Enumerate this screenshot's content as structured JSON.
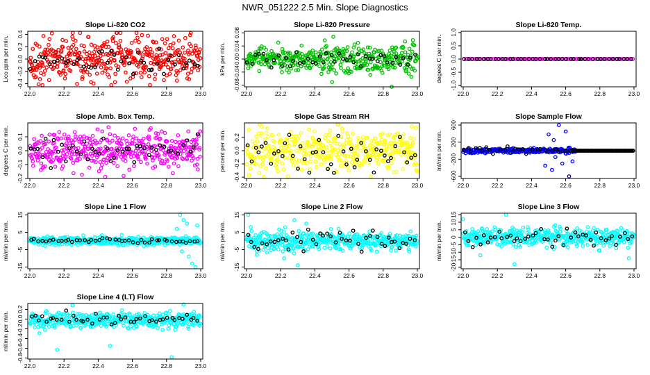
{
  "figure_title": "NWR_051222  2.5 Min. Slope Diagnostics",
  "colors": {
    "red": "#ff0000",
    "green": "#00c000",
    "magenta": "#ff00ff",
    "yellow": "#ffff00",
    "blue": "#0000ff",
    "cyan": "#00ffff",
    "black": "#000000"
  },
  "chart_data": [
    {
      "type": "scatter",
      "title": "Slope Li-820 CO2",
      "ylabel": "Lico ppm per min.",
      "color": "#ff0000",
      "xlim": [
        22.0,
        23.0
      ],
      "ylim": [
        -0.45,
        0.45
      ],
      "xticks": [
        22.0,
        22.2,
        22.4,
        22.6,
        22.8,
        23.0
      ],
      "xtick_labels": [
        "22.0",
        "22.2",
        "22.4",
        "22.6",
        "22.8",
        "23.0"
      ],
      "yticks": [
        -0.4,
        -0.2,
        0.0,
        0.2,
        0.4
      ],
      "ytick_labels": [
        "-0.4",
        "-0.2",
        "0.0",
        "0.2",
        "0.4"
      ],
      "series": [
        {
          "name": "all",
          "x_range": [
            22.0,
            23.0
          ],
          "center": 0.0,
          "spread": 0.18,
          "count": 420,
          "outliers": []
        },
        {
          "name": "subset",
          "color": "#000000",
          "count": 45,
          "spread": 0.12,
          "offset": -0.02
        }
      ]
    },
    {
      "type": "scatter",
      "title": "Slope Li-820 Pressure",
      "ylabel": "kPa per min.",
      "color": "#00c000",
      "xlim": [
        22.0,
        23.0
      ],
      "ylim": [
        -0.085,
        0.085
      ],
      "xticks": [
        22.0,
        22.2,
        22.4,
        22.6,
        22.8,
        23.0
      ],
      "xtick_labels": [
        "22.0",
        "22.2",
        "22.4",
        "22.6",
        "22.8",
        "23.0"
      ],
      "yticks": [
        -0.08,
        -0.04,
        0.0,
        0.04,
        0.08
      ],
      "ytick_labels": [
        "-0.08",
        "-0.04",
        "0.00",
        "0.04",
        "0.08"
      ],
      "series": [
        {
          "name": "all",
          "x_range": [
            22.0,
            23.0
          ],
          "center": 0.0,
          "spread": 0.015,
          "count": 420,
          "outliers": [
            [
              22.85,
              -0.085
            ]
          ],
          "growth": 1.8
        },
        {
          "name": "subset",
          "color": "#000000",
          "count": 45,
          "spread": 0.012,
          "offset": -0.002
        }
      ]
    },
    {
      "type": "scatter",
      "title": "Slope Li-820 Temp.",
      "ylabel": "degees C per min.",
      "color": "#ff00ff",
      "xlim": [
        22.0,
        23.0
      ],
      "ylim": [
        -1.05,
        1.05
      ],
      "xticks": [
        22.0,
        22.2,
        22.4,
        22.6,
        22.8,
        23.0
      ],
      "xtick_labels": [
        "22.0",
        "22.2",
        "22.4",
        "22.6",
        "22.8",
        "23.0"
      ],
      "yticks": [
        -1.0,
        -0.5,
        0.0,
        0.5,
        1.0
      ],
      "ytick_labels": [
        "-1.0",
        "-0.5",
        "0.0",
        "0.5",
        "1.0"
      ],
      "series": [
        {
          "name": "all",
          "x_range": [
            22.0,
            23.0
          ],
          "center": 0.0,
          "spread": 0.0,
          "count": 100,
          "outliers": []
        },
        {
          "name": "subset",
          "color": "#000000",
          "count": 45,
          "spread": 0.0,
          "offset": 0.0
        }
      ]
    },
    {
      "type": "scatter",
      "title": "Slope Amb. Box Temp.",
      "ylabel": "degrees C per min.",
      "color": "#ff00ff",
      "xlim": [
        22.0,
        23.0
      ],
      "ylim": [
        -0.2,
        0.2
      ],
      "xticks": [
        22.0,
        22.2,
        22.4,
        22.6,
        22.8,
        23.0
      ],
      "xtick_labels": [
        "22.0",
        "22.2",
        "22.4",
        "22.6",
        "22.8",
        "23.0"
      ],
      "yticks": [
        -0.2,
        -0.1,
        0.0,
        0.1
      ],
      "ytick_labels": [
        "-0.2",
        "-0.1",
        "0.0",
        "0.1"
      ],
      "series": [
        {
          "name": "all",
          "x_range": [
            22.0,
            23.0
          ],
          "center": 0.01,
          "spread": 0.065,
          "count": 420,
          "outliers": []
        },
        {
          "name": "subset",
          "color": "#000000",
          "count": 45,
          "spread": 0.05,
          "offset": 0.0
        }
      ]
    },
    {
      "type": "scatter",
      "title": "Slope Gas Stream RH",
      "ylabel": "percent per min.",
      "color": "#ffff00",
      "xlim": [
        22.0,
        23.0
      ],
      "ylim": [
        -0.42,
        0.42
      ],
      "xticks": [
        22.0,
        22.2,
        22.4,
        22.6,
        22.8,
        23.0
      ],
      "xtick_labels": [
        "22.0",
        "22.2",
        "22.4",
        "22.6",
        "22.8",
        "23.0"
      ],
      "yticks": [
        -0.4,
        -0.2,
        0.0,
        0.2
      ],
      "ytick_labels": [
        "-0.4",
        "-0.2",
        "0.0",
        "0.2"
      ],
      "series": [
        {
          "name": "all",
          "x_range": [
            22.0,
            23.0
          ],
          "center": 0.0,
          "spread": 0.17,
          "count": 420,
          "outliers": []
        },
        {
          "name": "subset",
          "color": "#000000",
          "count": 45,
          "spread": 0.16,
          "offset": -0.03
        }
      ]
    },
    {
      "type": "scatter",
      "title": "Slope Sample Flow",
      "ylabel": "ml/min per min.",
      "color": "#0000ff",
      "xlim": [
        22.0,
        23.0
      ],
      "ylim": [
        -650,
        650
      ],
      "xticks": [
        22.0,
        22.2,
        22.4,
        22.6,
        22.8,
        23.0
      ],
      "xtick_labels": [
        "22.0",
        "22.2",
        "22.4",
        "22.6",
        "22.8",
        "23.0"
      ],
      "yticks": [
        -600,
        -200,
        200,
        600
      ],
      "ytick_labels": [
        "-600",
        "-200",
        "200",
        "600"
      ],
      "series": [
        {
          "name": "all",
          "x_range": [
            22.0,
            22.66
          ],
          "center": 0.0,
          "spread": 25,
          "count": 240,
          "outliers": [
            [
              22.48,
              -350
            ],
            [
              22.5,
              380
            ],
            [
              22.52,
              -450
            ],
            [
              22.53,
              250
            ],
            [
              22.56,
              600
            ],
            [
              22.58,
              -300
            ],
            [
              22.6,
              450
            ],
            [
              22.62,
              -600
            ],
            [
              22.64,
              -250
            ],
            [
              22.54,
              -150
            ]
          ]
        },
        {
          "name": "flat",
          "color": "#000000",
          "count": 70,
          "spread": 0.0,
          "offset": 0.0,
          "x_range": [
            22.64,
            23.0
          ]
        },
        {
          "name": "subset",
          "color": "#000000",
          "count": 30,
          "spread": 40,
          "offset": 0.0,
          "x_range": [
            22.0,
            22.64
          ]
        }
      ]
    },
    {
      "type": "scatter",
      "title": "Slope Line 1 Flow",
      "ylabel": "ml/min per min.",
      "color": "#00ffff",
      "xlim": [
        22.0,
        23.0
      ],
      "ylim": [
        -16,
        16
      ],
      "xticks": [
        22.0,
        22.2,
        22.4,
        22.6,
        22.8,
        23.0
      ],
      "xtick_labels": [
        "22.0",
        "22.2",
        "22.4",
        "22.6",
        "22.8",
        "23.0"
      ],
      "yticks": [
        -15,
        -5,
        5,
        15
      ],
      "ytick_labels": [
        "-15",
        "-5",
        "5",
        "15"
      ],
      "series": [
        {
          "name": "all",
          "x_range": [
            22.0,
            23.0
          ],
          "center": 0.0,
          "spread": 1.2,
          "count": 420,
          "outliers": [
            [
              22.88,
              15
            ],
            [
              22.9,
              12
            ],
            [
              22.92,
              10
            ],
            [
              22.95,
              -13
            ],
            [
              22.97,
              -15
            ],
            [
              22.93,
              -9
            ],
            [
              22.98,
              9
            ],
            [
              22.89,
              -6
            ],
            [
              22.86,
              7
            ]
          ]
        },
        {
          "name": "subset",
          "color": "#000000",
          "count": 45,
          "spread": 0.6,
          "offset": 0.0
        }
      ]
    },
    {
      "type": "scatter",
      "title": "Slope Line 2 Flow",
      "ylabel": "ml/min per min.",
      "color": "#00ffff",
      "xlim": [
        22.0,
        23.0
      ],
      "ylim": [
        -16,
        16
      ],
      "xticks": [
        22.0,
        22.2,
        22.4,
        22.6,
        22.8,
        23.0
      ],
      "xtick_labels": [
        "22.0",
        "22.2",
        "22.4",
        "22.6",
        "22.8",
        "23.0"
      ],
      "yticks": [
        -15,
        -5,
        5,
        15
      ],
      "ytick_labels": [
        "-15",
        "-5",
        "5",
        "15"
      ],
      "series": [
        {
          "name": "all",
          "x_range": [
            22.0,
            23.0
          ],
          "center": 0.0,
          "spread": 2.0,
          "count": 420,
          "outliers": [
            [
              22.01,
              15
            ],
            [
              22.28,
              12
            ],
            [
              22.3,
              -14
            ],
            [
              22.35,
              10
            ],
            [
              22.06,
              -8
            ],
            [
              22.22,
              -10
            ]
          ],
          "decay": 1.0
        },
        {
          "name": "subset",
          "color": "#000000",
          "count": 45,
          "spread": 3.0,
          "offset": 0.0
        }
      ]
    },
    {
      "type": "scatter",
      "title": "Slope Line 3 Flow",
      "ylabel": "ml/min per min.",
      "color": "#00ffff",
      "xlim": [
        22.0,
        23.0
      ],
      "ylim": [
        -21,
        16
      ],
      "xticks": [
        22.0,
        22.2,
        22.4,
        22.6,
        22.8,
        23.0
      ],
      "xtick_labels": [
        "22.0",
        "22.2",
        "22.4",
        "22.6",
        "22.8",
        "23.0"
      ],
      "yticks": [
        -20,
        -15,
        -10,
        -5,
        0,
        5,
        10,
        15
      ],
      "ytick_labels": [
        "-20",
        "-15",
        "-10",
        "-5",
        "0",
        "5",
        "10",
        "15"
      ],
      "series": [
        {
          "name": "all",
          "x_range": [
            22.0,
            23.0
          ],
          "center": 0.0,
          "spread": 3.0,
          "count": 420,
          "outliers": [
            [
              22.0,
              12
            ],
            [
              22.3,
              -18
            ],
            [
              22.25,
              15
            ],
            [
              22.97,
              -14
            ],
            [
              22.1,
              -12
            ]
          ]
        },
        {
          "name": "subset",
          "color": "#000000",
          "count": 45,
          "spread": 3.0,
          "offset": 0.0
        }
      ]
    },
    {
      "type": "scatter",
      "title": "Slope Line 4 (LT) Flow",
      "ylabel": "ml/min per min.",
      "color": "#00ffff",
      "xlim": [
        22.0,
        23.0
      ],
      "ylim": [
        -0.82,
        0.32
      ],
      "xticks": [
        22.0,
        22.2,
        22.4,
        22.6,
        22.8,
        23.0
      ],
      "xtick_labels": [
        "22.0",
        "22.2",
        "22.4",
        "22.6",
        "22.8",
        "23.0"
      ],
      "yticks": [
        -0.8,
        -0.6,
        -0.4,
        -0.2,
        0.0,
        0.2
      ],
      "ytick_labels": [
        "-0.8",
        "-0.6",
        "-0.4",
        "-0.2",
        "0.0",
        "0.2"
      ],
      "series": [
        {
          "name": "all",
          "x_range": [
            22.0,
            23.0
          ],
          "center": -0.02,
          "spread": 0.08,
          "count": 420,
          "outliers": [
            [
              22.16,
              -0.63
            ],
            [
              22.47,
              -0.55
            ],
            [
              22.83,
              -0.78
            ],
            [
              22.9,
              0.3
            ],
            [
              22.25,
              0.28
            ]
          ]
        },
        {
          "name": "subset",
          "color": "#000000",
          "count": 45,
          "spread": 0.06,
          "offset": 0.0
        }
      ]
    }
  ]
}
